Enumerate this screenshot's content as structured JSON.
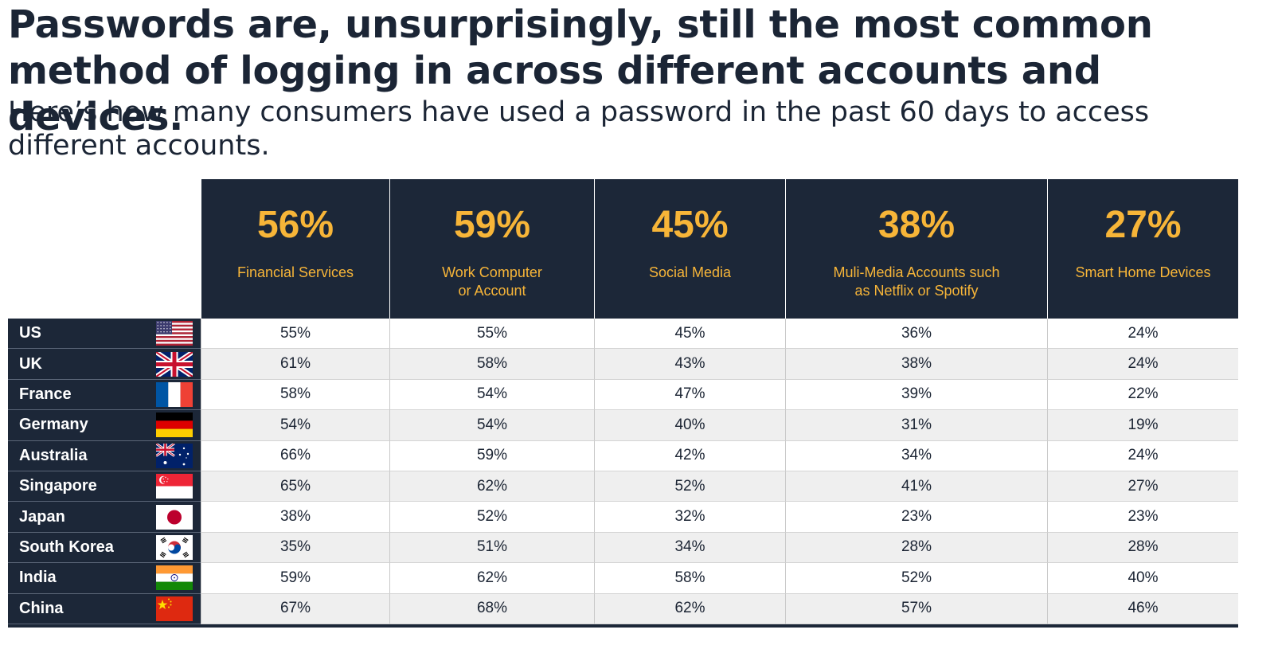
{
  "title": "Passwords are, unsurprisingly, still the most common method of logging in across different accounts and devices.",
  "subtitle": "Here’s how many consumers have used a password in the past 60 days to access different accounts.",
  "colors": {
    "header_bg": "#1c2738",
    "accent": "#f7b538",
    "row_alt": "#efefef"
  },
  "chart_data": {
    "type": "table",
    "columns": [
      {
        "total": "56%",
        "label": "Financial Services"
      },
      {
        "total": "59%",
        "label": "Work Computer\nor Account"
      },
      {
        "total": "45%",
        "label": "Social Media"
      },
      {
        "total": "38%",
        "label": "Muli-Media Accounts such\nas Netflix or Spotify"
      },
      {
        "total": "27%",
        "label": "Smart Home Devices"
      }
    ],
    "rows": [
      {
        "country": "US",
        "flag": "us-flag-icon",
        "values": [
          "55%",
          "55%",
          "45%",
          "36%",
          "24%"
        ]
      },
      {
        "country": "UK",
        "flag": "uk-flag-icon",
        "values": [
          "61%",
          "58%",
          "43%",
          "38%",
          "24%"
        ]
      },
      {
        "country": "France",
        "flag": "france-flag-icon",
        "values": [
          "58%",
          "54%",
          "47%",
          "39%",
          "22%"
        ]
      },
      {
        "country": "Germany",
        "flag": "germany-flag-icon",
        "values": [
          "54%",
          "54%",
          "40%",
          "31%",
          "19%"
        ]
      },
      {
        "country": "Australia",
        "flag": "australia-flag-icon",
        "values": [
          "66%",
          "59%",
          "42%",
          "34%",
          "24%"
        ]
      },
      {
        "country": "Singapore",
        "flag": "singapore-flag-icon",
        "values": [
          "65%",
          "62%",
          "52%",
          "41%",
          "27%"
        ]
      },
      {
        "country": "Japan",
        "flag": "japan-flag-icon",
        "values": [
          "38%",
          "52%",
          "32%",
          "23%",
          "23%"
        ]
      },
      {
        "country": "South Korea",
        "flag": "south-korea-flag-icon",
        "values": [
          "35%",
          "51%",
          "34%",
          "28%",
          "28%"
        ]
      },
      {
        "country": "India",
        "flag": "india-flag-icon",
        "values": [
          "59%",
          "62%",
          "58%",
          "52%",
          "40%"
        ]
      },
      {
        "country": "China",
        "flag": "china-flag-icon",
        "values": [
          "67%",
          "68%",
          "62%",
          "57%",
          "46%"
        ]
      }
    ]
  }
}
